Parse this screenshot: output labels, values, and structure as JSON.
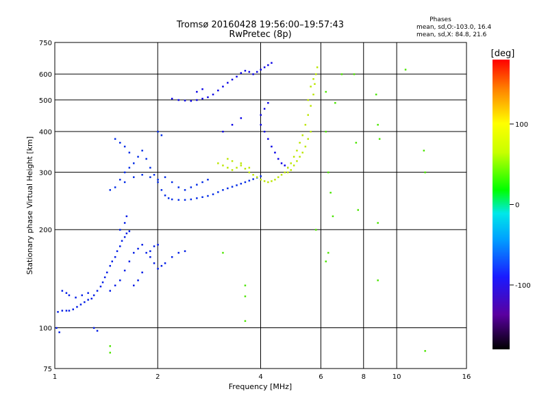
{
  "chart_data": {
    "type": "scatter",
    "title": "Tromsø 20160428 19:56:00–19:57:43",
    "subtitle": "RwPretec (8p)",
    "xlabel": "Frequency [MHz]",
    "ylabel": "Stationary phase Virtual Height [km]",
    "x_scale": "log",
    "y_scale": "log",
    "xlim": [
      1,
      16
    ],
    "ylim": [
      75,
      750
    ],
    "x_ticks": [
      1,
      2,
      4,
      6,
      8,
      10,
      16
    ],
    "x_tick_labels": [
      "1",
      "2",
      "4",
      "6",
      "8",
      "10",
      "16"
    ],
    "y_ticks": [
      75,
      100,
      200,
      300,
      400,
      500,
      600,
      750
    ],
    "y_tick_labels": [
      "75",
      "100",
      "200",
      "300",
      "400",
      "500",
      "600",
      "750"
    ],
    "grid": true,
    "stats": {
      "title": "Phases",
      "line1": "mean, sd,O:-103.0, 16.4",
      "line2": "mean, sd,X:  84.8, 21.6"
    },
    "colorbar": {
      "label": "[deg]",
      "range": [
        -180,
        180
      ],
      "ticks": [
        100,
        0,
        -100
      ],
      "tick_labels": [
        "100",
        "0",
        "-100"
      ],
      "colormap": "rainbow"
    },
    "series": [
      {
        "trace": "o-mode-low-layer",
        "points": [
          [
            1.02,
            112
          ],
          [
            1.05,
            113
          ],
          [
            1.08,
            113
          ],
          [
            1.1,
            113
          ],
          [
            1.13,
            114
          ],
          [
            1.16,
            116
          ],
          [
            1.19,
            118
          ],
          [
            1.22,
            120
          ],
          [
            1.25,
            122
          ],
          [
            1.28,
            123
          ],
          [
            1.3,
            126
          ],
          [
            1.33,
            130
          ],
          [
            1.36,
            134
          ],
          [
            1.38,
            138
          ],
          [
            1.4,
            143
          ],
          [
            1.42,
            148
          ],
          [
            1.45,
            155
          ],
          [
            1.47,
            160
          ],
          [
            1.5,
            165
          ],
          [
            1.52,
            172
          ],
          [
            1.55,
            178
          ],
          [
            1.57,
            185
          ],
          [
            1.6,
            190
          ],
          [
            1.62,
            195
          ],
          [
            1.65,
            198
          ],
          [
            1.45,
            130
          ],
          [
            1.5,
            135
          ],
          [
            1.55,
            140
          ],
          [
            1.6,
            150
          ],
          [
            1.65,
            160
          ],
          [
            1.7,
            170
          ],
          [
            1.75,
            175
          ],
          [
            1.8,
            180
          ],
          [
            1.85,
            170
          ],
          [
            1.9,
            165
          ],
          [
            1.95,
            158
          ],
          [
            2.0,
            152
          ],
          [
            2.05,
            155
          ],
          [
            2.1,
            158
          ],
          [
            2.2,
            165
          ],
          [
            2.3,
            170
          ],
          [
            2.4,
            172
          ],
          [
            1.7,
            135
          ],
          [
            1.75,
            140
          ],
          [
            1.8,
            148
          ],
          [
            1.9,
            172
          ],
          [
            1.95,
            178
          ],
          [
            2.0,
            180
          ],
          [
            1.05,
            130
          ],
          [
            1.08,
            128
          ],
          [
            1.1,
            126
          ],
          [
            1.15,
            124
          ],
          [
            1.2,
            126
          ],
          [
            1.25,
            128
          ],
          [
            1.01,
            100
          ],
          [
            1.03,
            97
          ],
          [
            1.3,
            100
          ],
          [
            1.33,
            98
          ],
          [
            1.55,
            200
          ],
          [
            1.6,
            210
          ],
          [
            1.62,
            220
          ]
        ],
        "phase": -100
      },
      {
        "trace": "o-mode-f-layer",
        "points": [
          [
            1.45,
            265
          ],
          [
            1.5,
            270
          ],
          [
            1.55,
            285
          ],
          [
            1.6,
            300
          ],
          [
            1.65,
            310
          ],
          [
            1.7,
            320
          ],
          [
            1.75,
            335
          ],
          [
            1.8,
            350
          ],
          [
            1.85,
            330
          ],
          [
            1.9,
            310
          ],
          [
            1.95,
            295
          ],
          [
            2.0,
            280
          ],
          [
            2.05,
            265
          ],
          [
            2.1,
            255
          ],
          [
            2.15,
            250
          ],
          [
            2.2,
            248
          ],
          [
            2.3,
            247
          ],
          [
            2.4,
            247
          ],
          [
            2.5,
            248
          ],
          [
            2.6,
            250
          ],
          [
            2.7,
            252
          ],
          [
            2.8,
            254
          ],
          [
            2.9,
            257
          ],
          [
            3.0,
            261
          ],
          [
            3.1,
            265
          ],
          [
            3.2,
            268
          ],
          [
            3.3,
            271
          ],
          [
            3.4,
            274
          ],
          [
            3.5,
            277
          ],
          [
            3.6,
            280
          ],
          [
            3.7,
            283
          ],
          [
            3.8,
            286
          ],
          [
            3.9,
            289
          ],
          [
            4.0,
            292
          ],
          [
            1.6,
            280
          ],
          [
            1.7,
            290
          ],
          [
            1.8,
            295
          ],
          [
            1.9,
            290
          ],
          [
            2.0,
            285
          ],
          [
            2.1,
            290
          ],
          [
            2.2,
            280
          ],
          [
            2.3,
            270
          ],
          [
            2.4,
            265
          ],
          [
            2.5,
            270
          ],
          [
            2.6,
            275
          ],
          [
            2.7,
            280
          ],
          [
            2.8,
            285
          ],
          [
            1.5,
            380
          ],
          [
            1.55,
            370
          ],
          [
            1.6,
            360
          ],
          [
            1.65,
            345
          ],
          [
            2.0,
            400
          ],
          [
            2.05,
            390
          ]
        ],
        "phase": -95
      },
      {
        "trace": "o-mode-f-upper",
        "points": [
          [
            2.2,
            505
          ],
          [
            2.3,
            500
          ],
          [
            2.4,
            498
          ],
          [
            2.5,
            497
          ],
          [
            2.6,
            500
          ],
          [
            2.7,
            505
          ],
          [
            2.8,
            510
          ],
          [
            2.9,
            520
          ],
          [
            3.0,
            535
          ],
          [
            3.1,
            550
          ],
          [
            3.2,
            565
          ],
          [
            3.3,
            578
          ],
          [
            3.4,
            590
          ],
          [
            3.5,
            605
          ],
          [
            3.6,
            615
          ],
          [
            3.7,
            610
          ],
          [
            3.8,
            600
          ],
          [
            3.9,
            610
          ],
          [
            4.0,
            620
          ],
          [
            4.1,
            630
          ],
          [
            4.2,
            640
          ],
          [
            4.3,
            650
          ],
          [
            4.0,
            420
          ],
          [
            4.1,
            400
          ],
          [
            4.2,
            380
          ],
          [
            4.3,
            360
          ],
          [
            4.4,
            345
          ],
          [
            4.5,
            330
          ],
          [
            4.6,
            320
          ],
          [
            4.7,
            315
          ],
          [
            4.8,
            310
          ],
          [
            4.9,
            305
          ],
          [
            4.0,
            450
          ],
          [
            4.1,
            470
          ],
          [
            4.2,
            490
          ],
          [
            3.5,
            440
          ],
          [
            3.3,
            420
          ],
          [
            3.1,
            400
          ],
          [
            2.6,
            530
          ],
          [
            2.7,
            540
          ]
        ],
        "phase": -110
      },
      {
        "trace": "x-mode",
        "points": [
          [
            3.0,
            320
          ],
          [
            3.1,
            315
          ],
          [
            3.2,
            310
          ],
          [
            3.3,
            305
          ],
          [
            3.4,
            310
          ],
          [
            3.5,
            315
          ],
          [
            3.6,
            308
          ],
          [
            3.7,
            300
          ],
          [
            3.8,
            295
          ],
          [
            3.9,
            290
          ],
          [
            4.0,
            285
          ],
          [
            4.1,
            282
          ],
          [
            4.2,
            280
          ],
          [
            4.3,
            282
          ],
          [
            4.4,
            285
          ],
          [
            4.5,
            290
          ],
          [
            4.6,
            295
          ],
          [
            4.7,
            300
          ],
          [
            4.8,
            310
          ],
          [
            4.9,
            320
          ],
          [
            5.0,
            335
          ],
          [
            5.1,
            350
          ],
          [
            5.2,
            370
          ],
          [
            5.3,
            390
          ],
          [
            5.4,
            420
          ],
          [
            5.5,
            450
          ],
          [
            5.6,
            480
          ],
          [
            5.7,
            520
          ],
          [
            5.75,
            560
          ],
          [
            5.8,
            600
          ],
          [
            5.85,
            630
          ],
          [
            5.6,
            400
          ],
          [
            5.5,
            380
          ],
          [
            5.4,
            360
          ],
          [
            5.3,
            345
          ],
          [
            5.2,
            335
          ],
          [
            5.1,
            325
          ],
          [
            5.0,
            315
          ],
          [
            4.9,
            305
          ],
          [
            4.8,
            300
          ],
          [
            5.5,
            500
          ],
          [
            5.6,
            550
          ],
          [
            5.7,
            580
          ],
          [
            3.2,
            330
          ],
          [
            3.3,
            325
          ],
          [
            3.5,
            320
          ],
          [
            3.7,
            310
          ]
        ],
        "phase": 95
      },
      {
        "trace": "noise",
        "points": [
          [
            6.2,
            400
          ],
          [
            6.3,
            300
          ],
          [
            6.4,
            260
          ],
          [
            6.5,
            220
          ],
          [
            6.2,
            160
          ],
          [
            6.3,
            170
          ],
          [
            6.9,
            600
          ],
          [
            7.5,
            600
          ],
          [
            8.7,
            520
          ],
          [
            8.8,
            420
          ],
          [
            8.9,
            380
          ],
          [
            8.8,
            210
          ],
          [
            8.8,
            140
          ],
          [
            6.2,
            530
          ],
          [
            6.6,
            490
          ],
          [
            7.6,
            370
          ],
          [
            7.7,
            230
          ],
          [
            5.8,
            200
          ],
          [
            12.1,
            300
          ],
          [
            12.0,
            350
          ],
          [
            10.6,
            620
          ],
          [
            3.6,
            135
          ],
          [
            3.6,
            125
          ],
          [
            3.6,
            105
          ],
          [
            3.1,
            170
          ],
          [
            1.45,
            88
          ],
          [
            1.45,
            84
          ],
          [
            12.1,
            85
          ]
        ],
        "phase": 60
      }
    ]
  }
}
